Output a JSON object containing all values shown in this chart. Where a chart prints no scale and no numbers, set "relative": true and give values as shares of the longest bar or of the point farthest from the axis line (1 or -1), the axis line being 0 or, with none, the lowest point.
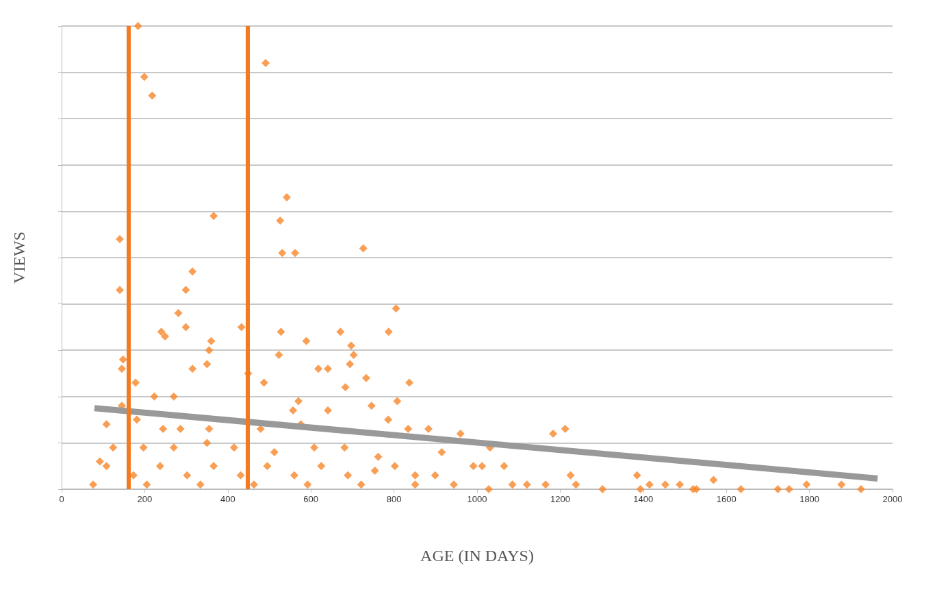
{
  "chart_data": {
    "type": "scatter",
    "xlabel": "AGE (IN DAYS)",
    "ylabel": "VIEWS",
    "relative": true,
    "xlim": [
      0,
      2000
    ],
    "xticks": [
      0,
      200,
      400,
      600,
      800,
      1000,
      1200,
      1400,
      1600,
      1800,
      2000
    ],
    "grid": "y",
    "marker": "diamond",
    "series": [
      {
        "color": "#f7872b",
        "x": [
          184,
          199,
          218,
          491,
          542,
          366,
          526,
          531,
          562,
          726,
          140,
          140,
          315,
          299,
          281,
          299,
          433,
          360,
          240,
          249,
          315,
          350,
          355,
          528,
          589,
          671,
          697,
          703,
          694,
          805,
          787,
          523,
          487,
          618,
          641,
          683,
          733,
          837,
          148,
          145,
          178,
          223,
          270,
          449,
          808,
          746,
          557,
          570,
          641,
          145,
          108,
          181,
          834,
          960,
          1183,
          1212,
          244,
          286,
          355,
          479,
          576,
          786,
          883,
          1031,
          1065,
          1012,
          991,
          1225,
          1385,
          1415,
          1488,
          1569,
          1635,
          1751,
          1793,
          1877,
          1924,
          1724,
          1528,
          1520,
          1453,
          1393,
          1302,
          1238,
          1165,
          1120,
          1085,
          1028,
          944,
          899,
          851,
          802,
          754,
          689,
          625,
          560,
          495,
          431,
          366,
          302,
          237,
          173,
          108,
          92,
          76,
          205,
          334,
          463,
          592,
          721,
          851,
          124,
          197,
          270,
          350,
          415,
          512,
          608,
          681,
          762,
          915
        ],
        "values": [
          1.0,
          0.89,
          0.85,
          0.92,
          0.63,
          0.59,
          0.58,
          0.51,
          0.51,
          0.52,
          0.54,
          0.43,
          0.47,
          0.43,
          0.38,
          0.35,
          0.35,
          0.32,
          0.34,
          0.33,
          0.26,
          0.27,
          0.3,
          0.34,
          0.32,
          0.34,
          0.31,
          0.29,
          0.27,
          0.39,
          0.34,
          0.29,
          0.23,
          0.26,
          0.26,
          0.22,
          0.24,
          0.23,
          0.28,
          0.26,
          0.23,
          0.2,
          0.2,
          0.25,
          0.19,
          0.18,
          0.17,
          0.19,
          0.17,
          0.18,
          0.14,
          0.15,
          0.13,
          0.12,
          0.12,
          0.13,
          0.13,
          0.13,
          0.13,
          0.13,
          0.14,
          0.15,
          0.13,
          0.09,
          0.05,
          0.05,
          0.05,
          0.03,
          0.03,
          0.01,
          0.01,
          0.02,
          0.0,
          0.0,
          0.01,
          0.01,
          0.0,
          0.0,
          0.0,
          0.0,
          0.01,
          0.0,
          0.0,
          0.01,
          0.01,
          0.01,
          0.01,
          0.0,
          0.01,
          0.03,
          0.03,
          0.05,
          0.04,
          0.03,
          0.05,
          0.03,
          0.05,
          0.03,
          0.05,
          0.03,
          0.05,
          0.03,
          0.05,
          0.06,
          0.01,
          0.01,
          0.01,
          0.01,
          0.01,
          0.01,
          0.01,
          0.09,
          0.09,
          0.09,
          0.1,
          0.09,
          0.08,
          0.09,
          0.09,
          0.07,
          0.08
        ]
      },
      {
        "type": "line",
        "color": "#999999",
        "marker": "none",
        "x": [
          79,
          1964
        ],
        "values": [
          0.175,
          0.023
        ]
      }
    ],
    "ref_lines": [
      {
        "axis": "x",
        "value": 161,
        "color": "#f47a20"
      },
      {
        "axis": "x",
        "value": 447,
        "color": "#f47a20"
      }
    ]
  }
}
